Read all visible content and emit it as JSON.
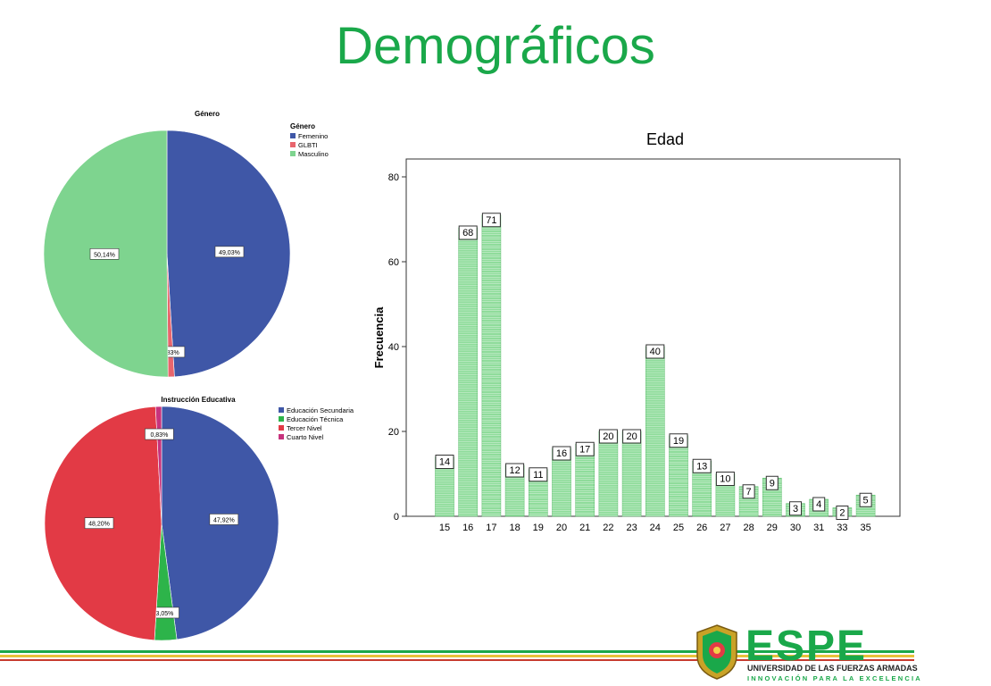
{
  "slide": {
    "title": "Demográficos"
  },
  "colors": {
    "title_green": "#1aa84a",
    "femenino": "#3f57a7",
    "glbti": "#e8656d",
    "masculino": "#7ed48f",
    "secundaria": "#3f57a7",
    "tecnica": "#2db44a",
    "tercer": "#e23a45",
    "cuarto": "#c7337d",
    "bar_fill": "#8fdc9b"
  },
  "chart_data": [
    {
      "type": "pie",
      "title": "Género",
      "legend_title": "Género",
      "legend_position": "top-right",
      "slices": [
        {
          "name": "Femenino",
          "value": 49.03,
          "label": "49,03%"
        },
        {
          "name": "GLBTI",
          "value": 0.83,
          "label": "0,83%"
        },
        {
          "name": "Masculino",
          "value": 50.14,
          "label": "50,14%"
        }
      ]
    },
    {
      "type": "pie",
      "title": "Instrucción Educativa",
      "legend_position": "top-right",
      "slices": [
        {
          "name": "Educación Secundaria",
          "value": 47.92,
          "label": "47,92%"
        },
        {
          "name": "Educación Técnica",
          "value": 3.05,
          "label": "3,05%"
        },
        {
          "name": "Tercer Nivel",
          "value": 48.2,
          "label": "48,20%"
        },
        {
          "name": "Cuarto Nivel",
          "value": 0.83,
          "label": "0,83%"
        }
      ]
    },
    {
      "type": "bar",
      "title": "Edad",
      "xlabel": "",
      "ylabel": "Frecuencia",
      "ylim": [
        0,
        80
      ],
      "yticks": [
        0,
        20,
        40,
        60,
        80
      ],
      "categories": [
        "15",
        "16",
        "17",
        "18",
        "19",
        "20",
        "21",
        "22",
        "23",
        "24",
        "25",
        "26",
        "27",
        "28",
        "29",
        "30",
        "31",
        "33",
        "35"
      ],
      "values": [
        14,
        68,
        71,
        12,
        11,
        16,
        17,
        20,
        20,
        40,
        19,
        13,
        10,
        7,
        9,
        3,
        4,
        2,
        5
      ],
      "grid": false
    }
  ],
  "footer": {
    "brand": "ESPE",
    "line1": "UNIVERSIDAD DE LAS FUERZAS ARMADAS",
    "line2": "INNOVACIÓN PARA LA EXCELENCIA"
  }
}
